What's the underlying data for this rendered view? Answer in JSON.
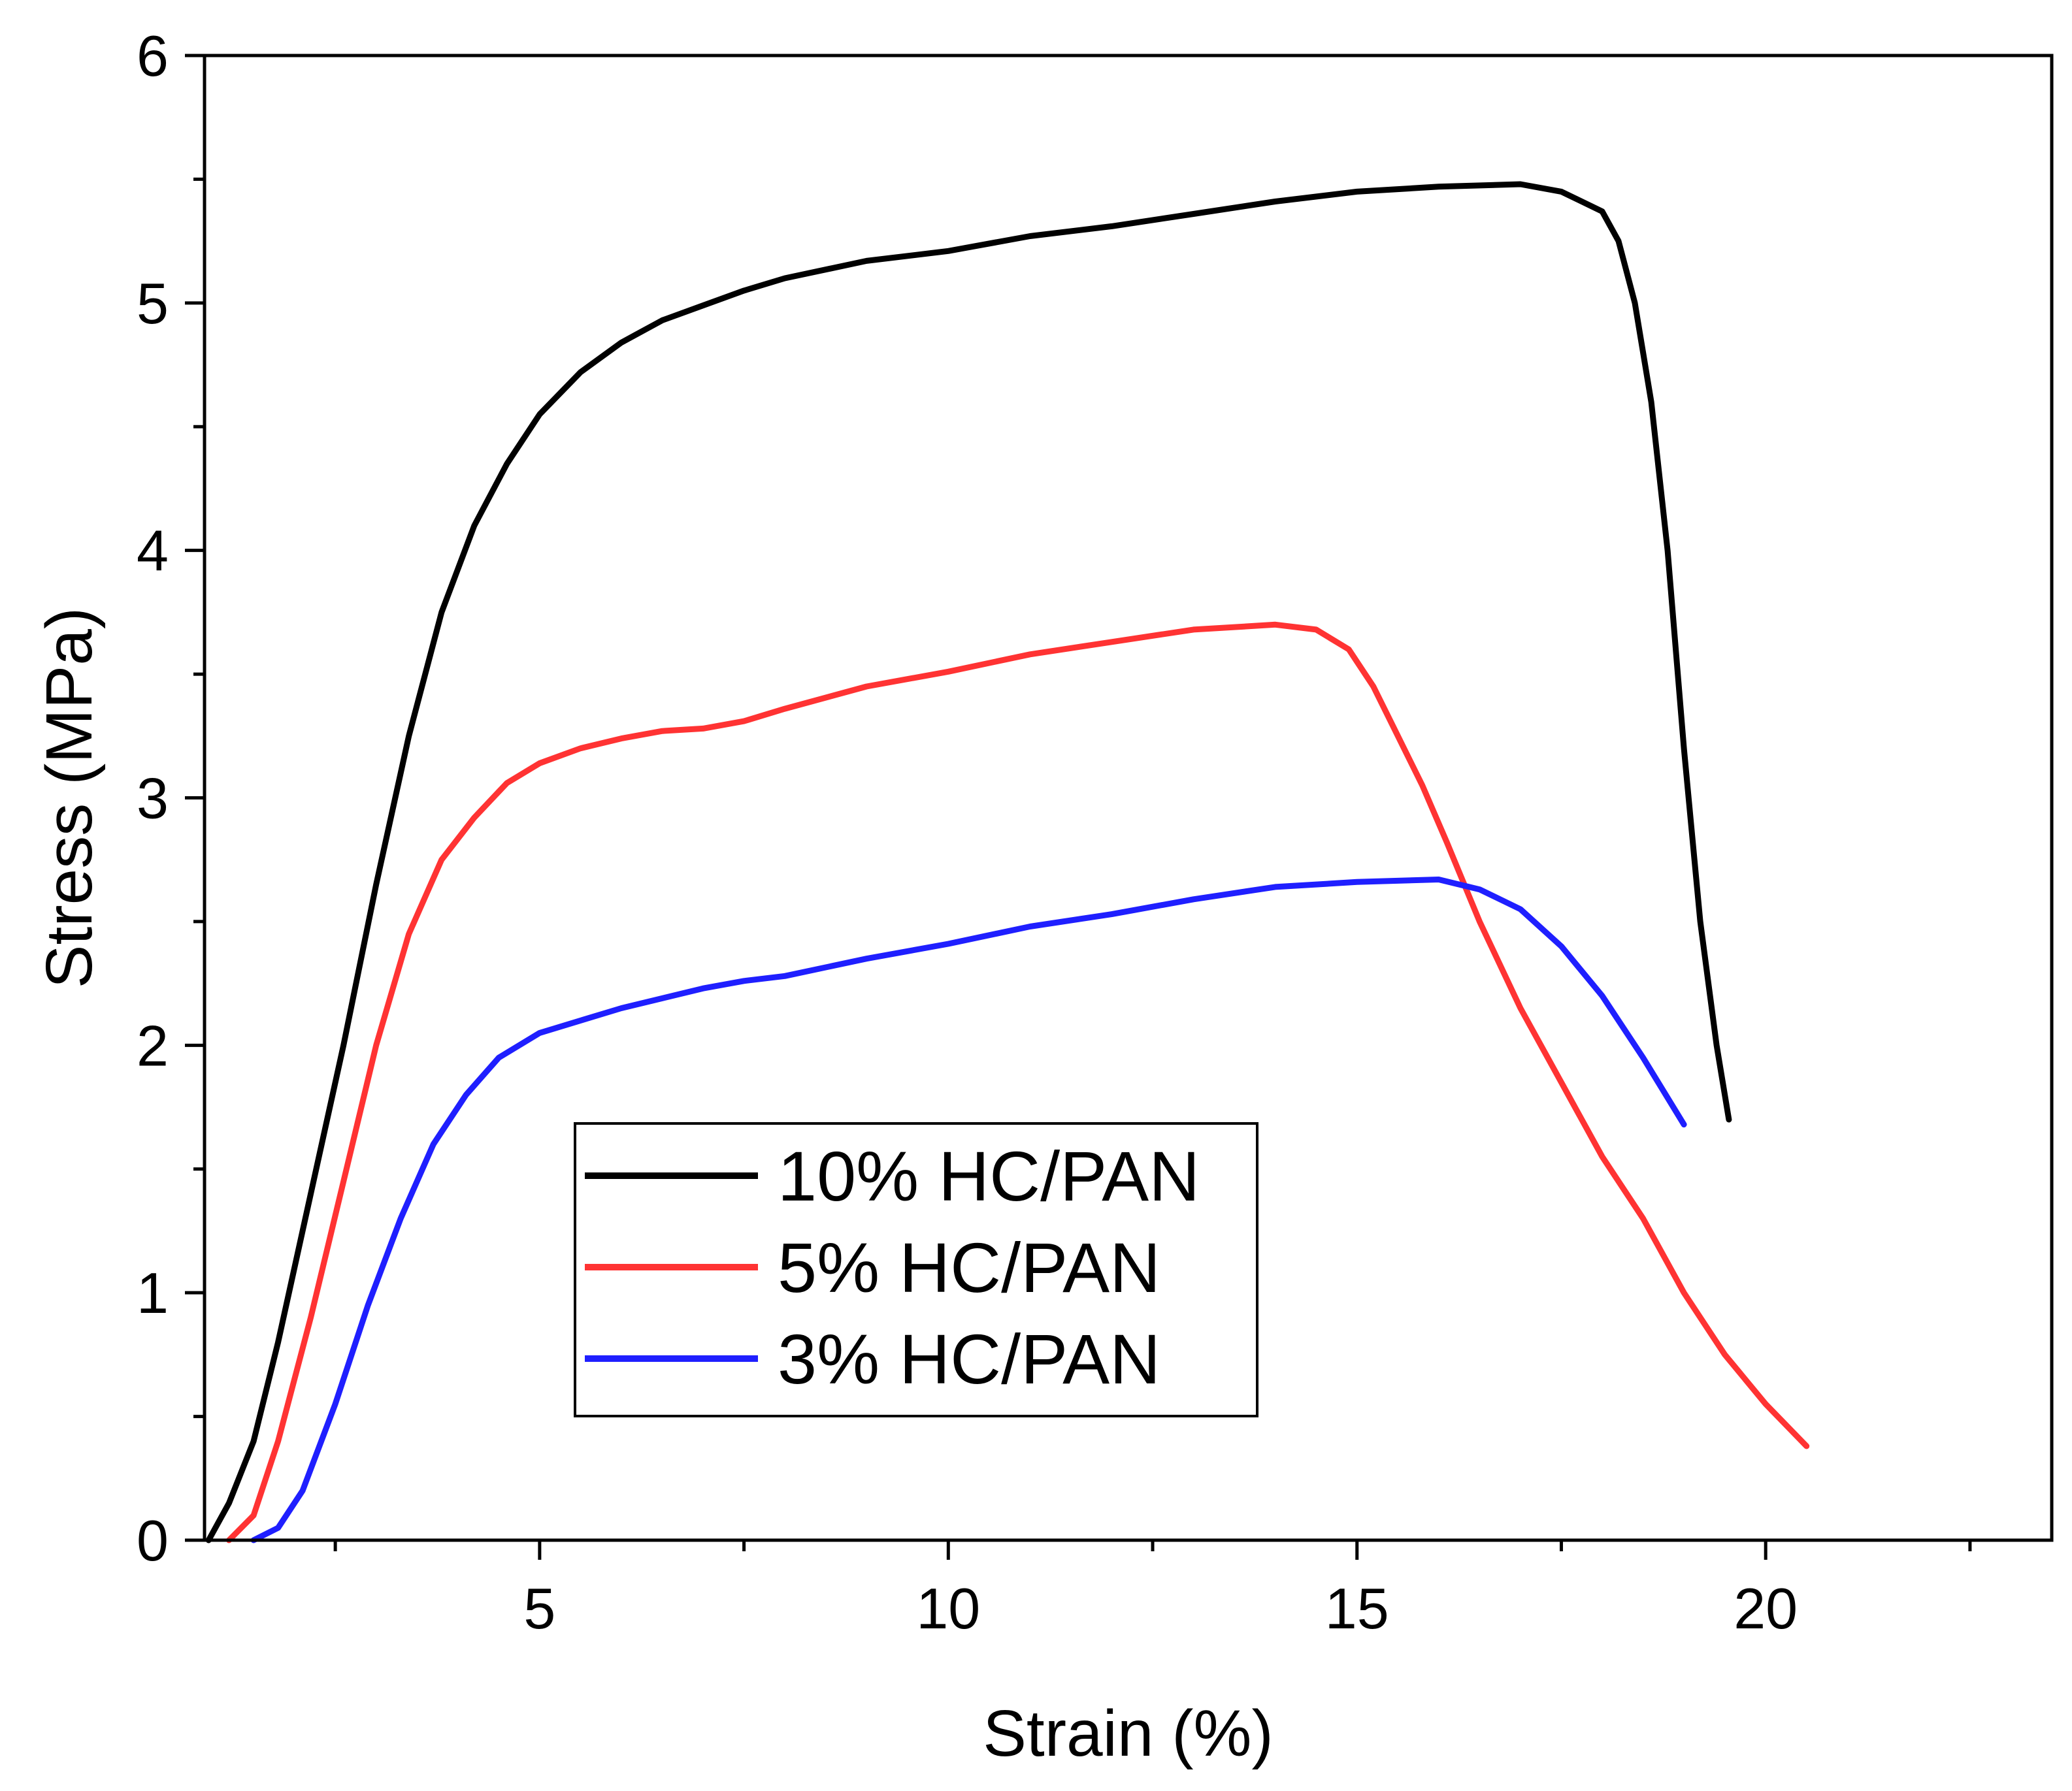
{
  "chart_data": {
    "type": "line",
    "title": "",
    "xlabel": "Strain (%)",
    "ylabel": "Stress (MPa)",
    "xlim": [
      0.9,
      23.5
    ],
    "ylim": [
      0,
      6
    ],
    "xticks": [
      5,
      10,
      15,
      20
    ],
    "yticks": [
      0,
      1,
      2,
      3,
      4,
      5,
      6
    ],
    "x_tick_labels": [
      "5",
      "10",
      "15",
      "20"
    ],
    "y_tick_labels": [
      "0",
      "1",
      "2",
      "3",
      "4",
      "5",
      "6"
    ],
    "grid": false,
    "legend_position": "lower-center",
    "series": [
      {
        "name": "10% HC/PAN",
        "color": "#000000",
        "points": [
          [
            0.95,
            0
          ],
          [
            1.2,
            0.15
          ],
          [
            1.5,
            0.4
          ],
          [
            1.8,
            0.8
          ],
          [
            2.2,
            1.4
          ],
          [
            2.6,
            2.0
          ],
          [
            3.0,
            2.65
          ],
          [
            3.4,
            3.25
          ],
          [
            3.8,
            3.75
          ],
          [
            4.2,
            4.1
          ],
          [
            4.6,
            4.35
          ],
          [
            5.0,
            4.55
          ],
          [
            5.5,
            4.72
          ],
          [
            6.0,
            4.84
          ],
          [
            6.5,
            4.93
          ],
          [
            7.0,
            4.99
          ],
          [
            7.5,
            5.05
          ],
          [
            8.0,
            5.1
          ],
          [
            9.0,
            5.17
          ],
          [
            10.0,
            5.21
          ],
          [
            11.0,
            5.27
          ],
          [
            12.0,
            5.31
          ],
          [
            13.0,
            5.36
          ],
          [
            14.0,
            5.41
          ],
          [
            15.0,
            5.45
          ],
          [
            16.0,
            5.47
          ],
          [
            17.0,
            5.48
          ],
          [
            17.5,
            5.45
          ],
          [
            18.0,
            5.37
          ],
          [
            18.2,
            5.25
          ],
          [
            18.4,
            5.0
          ],
          [
            18.6,
            4.6
          ],
          [
            18.8,
            4.0
          ],
          [
            19.0,
            3.2
          ],
          [
            19.2,
            2.5
          ],
          [
            19.4,
            2.0
          ],
          [
            19.55,
            1.7
          ]
        ]
      },
      {
        "name": "5% HC/PAN",
        "color": "#ff3333",
        "points": [
          [
            1.2,
            0
          ],
          [
            1.5,
            0.1
          ],
          [
            1.8,
            0.4
          ],
          [
            2.2,
            0.9
          ],
          [
            2.6,
            1.45
          ],
          [
            3.0,
            2.0
          ],
          [
            3.4,
            2.45
          ],
          [
            3.8,
            2.75
          ],
          [
            4.2,
            2.92
          ],
          [
            4.6,
            3.06
          ],
          [
            5.0,
            3.14
          ],
          [
            5.5,
            3.2
          ],
          [
            6.0,
            3.24
          ],
          [
            6.5,
            3.27
          ],
          [
            7.0,
            3.28
          ],
          [
            7.5,
            3.31
          ],
          [
            8.0,
            3.36
          ],
          [
            9.0,
            3.45
          ],
          [
            10.0,
            3.51
          ],
          [
            11.0,
            3.58
          ],
          [
            12.0,
            3.63
          ],
          [
            13.0,
            3.68
          ],
          [
            14.0,
            3.7
          ],
          [
            14.5,
            3.68
          ],
          [
            14.9,
            3.6
          ],
          [
            15.2,
            3.45
          ],
          [
            15.5,
            3.25
          ],
          [
            15.8,
            3.05
          ],
          [
            16.1,
            2.82
          ],
          [
            16.5,
            2.5
          ],
          [
            17.0,
            2.15
          ],
          [
            17.5,
            1.85
          ],
          [
            18.0,
            1.55
          ],
          [
            18.5,
            1.3
          ],
          [
            19.0,
            1.0
          ],
          [
            19.5,
            0.75
          ],
          [
            20.0,
            0.55
          ],
          [
            20.5,
            0.38
          ]
        ]
      },
      {
        "name": "3% HC/PAN",
        "color": "#1f1fff",
        "points": [
          [
            1.5,
            0
          ],
          [
            1.8,
            0.05
          ],
          [
            2.1,
            0.2
          ],
          [
            2.5,
            0.55
          ],
          [
            2.9,
            0.95
          ],
          [
            3.3,
            1.3
          ],
          [
            3.7,
            1.6
          ],
          [
            4.1,
            1.8
          ],
          [
            4.5,
            1.95
          ],
          [
            5.0,
            2.05
          ],
          [
            5.5,
            2.1
          ],
          [
            6.0,
            2.15
          ],
          [
            6.5,
            2.19
          ],
          [
            7.0,
            2.23
          ],
          [
            7.5,
            2.26
          ],
          [
            8.0,
            2.28
          ],
          [
            9.0,
            2.35
          ],
          [
            10.0,
            2.41
          ],
          [
            11.0,
            2.48
          ],
          [
            12.0,
            2.53
          ],
          [
            13.0,
            2.59
          ],
          [
            14.0,
            2.64
          ],
          [
            15.0,
            2.66
          ],
          [
            16.0,
            2.67
          ],
          [
            16.5,
            2.63
          ],
          [
            17.0,
            2.55
          ],
          [
            17.5,
            2.4
          ],
          [
            18.0,
            2.2
          ],
          [
            18.5,
            1.95
          ],
          [
            19.0,
            1.68
          ]
        ]
      }
    ]
  }
}
